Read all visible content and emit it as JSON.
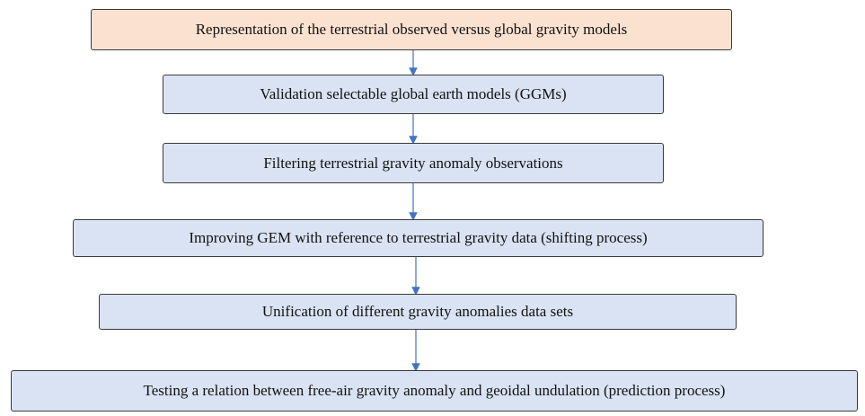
{
  "nodes": [
    {
      "label": "Representation of the terrestrial observed versus global gravity models"
    },
    {
      "label": "Validation selectable global earth models (GGMs)"
    },
    {
      "label": "Filtering terrestrial gravity anomaly observations"
    },
    {
      "label": "Improving GEM with reference to terrestrial gravity data (shifting process)"
    },
    {
      "label": "Unification of different gravity anomalies data sets"
    },
    {
      "label": "Testing a relation between free-air gravity anomaly and geoidal undulation (prediction process)"
    }
  ]
}
